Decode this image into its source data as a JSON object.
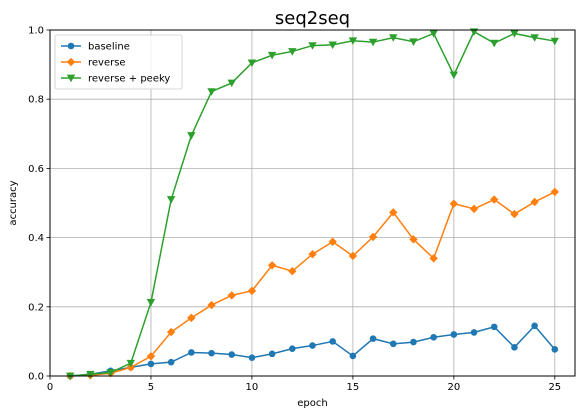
{
  "chart_data": {
    "type": "line",
    "title": "seq2seq",
    "xlabel": "epoch",
    "ylabel": "accuracy",
    "xlim": [
      0,
      26
    ],
    "ylim": [
      0,
      1.0
    ],
    "xticks": [
      0,
      5,
      10,
      15,
      20,
      25
    ],
    "yticks": [
      0.0,
      0.2,
      0.4,
      0.6,
      0.8,
      1.0
    ],
    "xtick_labels": [
      "0",
      "5",
      "10",
      "15",
      "20",
      "25"
    ],
    "ytick_labels": [
      "0.0",
      "0.2",
      "0.4",
      "0.6",
      "0.8",
      "1.0"
    ],
    "grid": true,
    "legend_position": "top-left",
    "x": [
      1,
      2,
      3,
      4,
      5,
      6,
      7,
      8,
      9,
      10,
      11,
      12,
      13,
      14,
      15,
      16,
      17,
      18,
      19,
      20,
      21,
      22,
      23,
      24,
      25
    ],
    "series": [
      {
        "name": "baseline",
        "color": "#1f77b4",
        "marker": "circle",
        "values": [
          0.0,
          0.005,
          0.015,
          0.025,
          0.035,
          0.04,
          0.068,
          0.066,
          0.062,
          0.053,
          0.064,
          0.079,
          0.088,
          0.1,
          0.058,
          0.108,
          0.093,
          0.098,
          0.112,
          0.12,
          0.126,
          0.142,
          0.083,
          0.145,
          0.077
        ]
      },
      {
        "name": "reverse",
        "color": "#ff7f0e",
        "marker": "diamond",
        "values": [
          0.0,
          0.002,
          0.008,
          0.025,
          0.057,
          0.127,
          0.168,
          0.205,
          0.233,
          0.246,
          0.32,
          0.303,
          0.352,
          0.388,
          0.347,
          0.402,
          0.473,
          0.395,
          0.34,
          0.498,
          0.483,
          0.51,
          0.468,
          0.503,
          0.532
        ]
      },
      {
        "name": "reverse + peeky",
        "color": "#2ca02c",
        "marker": "triangle-down",
        "values": [
          0.0,
          0.005,
          0.01,
          0.037,
          0.213,
          0.51,
          0.695,
          0.822,
          0.847,
          0.905,
          0.927,
          0.938,
          0.955,
          0.957,
          0.969,
          0.965,
          0.978,
          0.966,
          0.99,
          0.87,
          0.995,
          0.962,
          0.99,
          0.978,
          0.968
        ]
      }
    ]
  }
}
